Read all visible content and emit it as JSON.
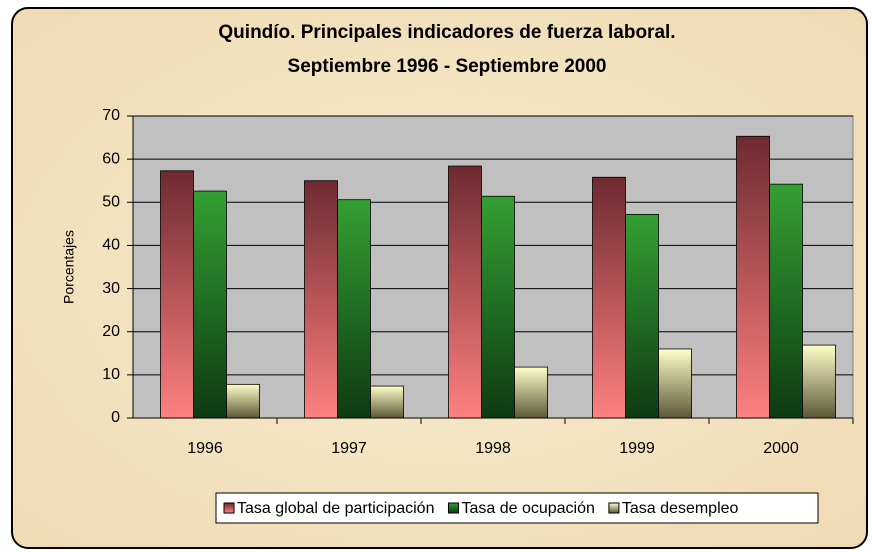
{
  "chart_data": {
    "type": "bar",
    "title": "Quindío. Principales indicadores de fuerza laboral.",
    "subtitle": "Septiembre 1996 - Septiembre 2000",
    "y_label": "Porcentajes",
    "categories": [
      "1996",
      "1997",
      "1998",
      "1999",
      "2000"
    ],
    "series": [
      {
        "name": "Tasa global de participación",
        "color": "#ff8080",
        "values": [
          57.3,
          55.0,
          58.4,
          55.8,
          65.3
        ]
      },
      {
        "name": "Tasa de ocupación",
        "color": "#33a033",
        "values": [
          52.6,
          50.6,
          51.4,
          47.2,
          54.2
        ]
      },
      {
        "name": "Tasa desempleo",
        "color": "#ffffc8",
        "values": [
          7.8,
          7.4,
          11.8,
          16.0,
          16.9
        ]
      }
    ],
    "ylim": [
      0,
      70
    ],
    "yticks": [
      0,
      10,
      20,
      30,
      40,
      50,
      60,
      70
    ],
    "grid": true,
    "legend": "bottom"
  }
}
